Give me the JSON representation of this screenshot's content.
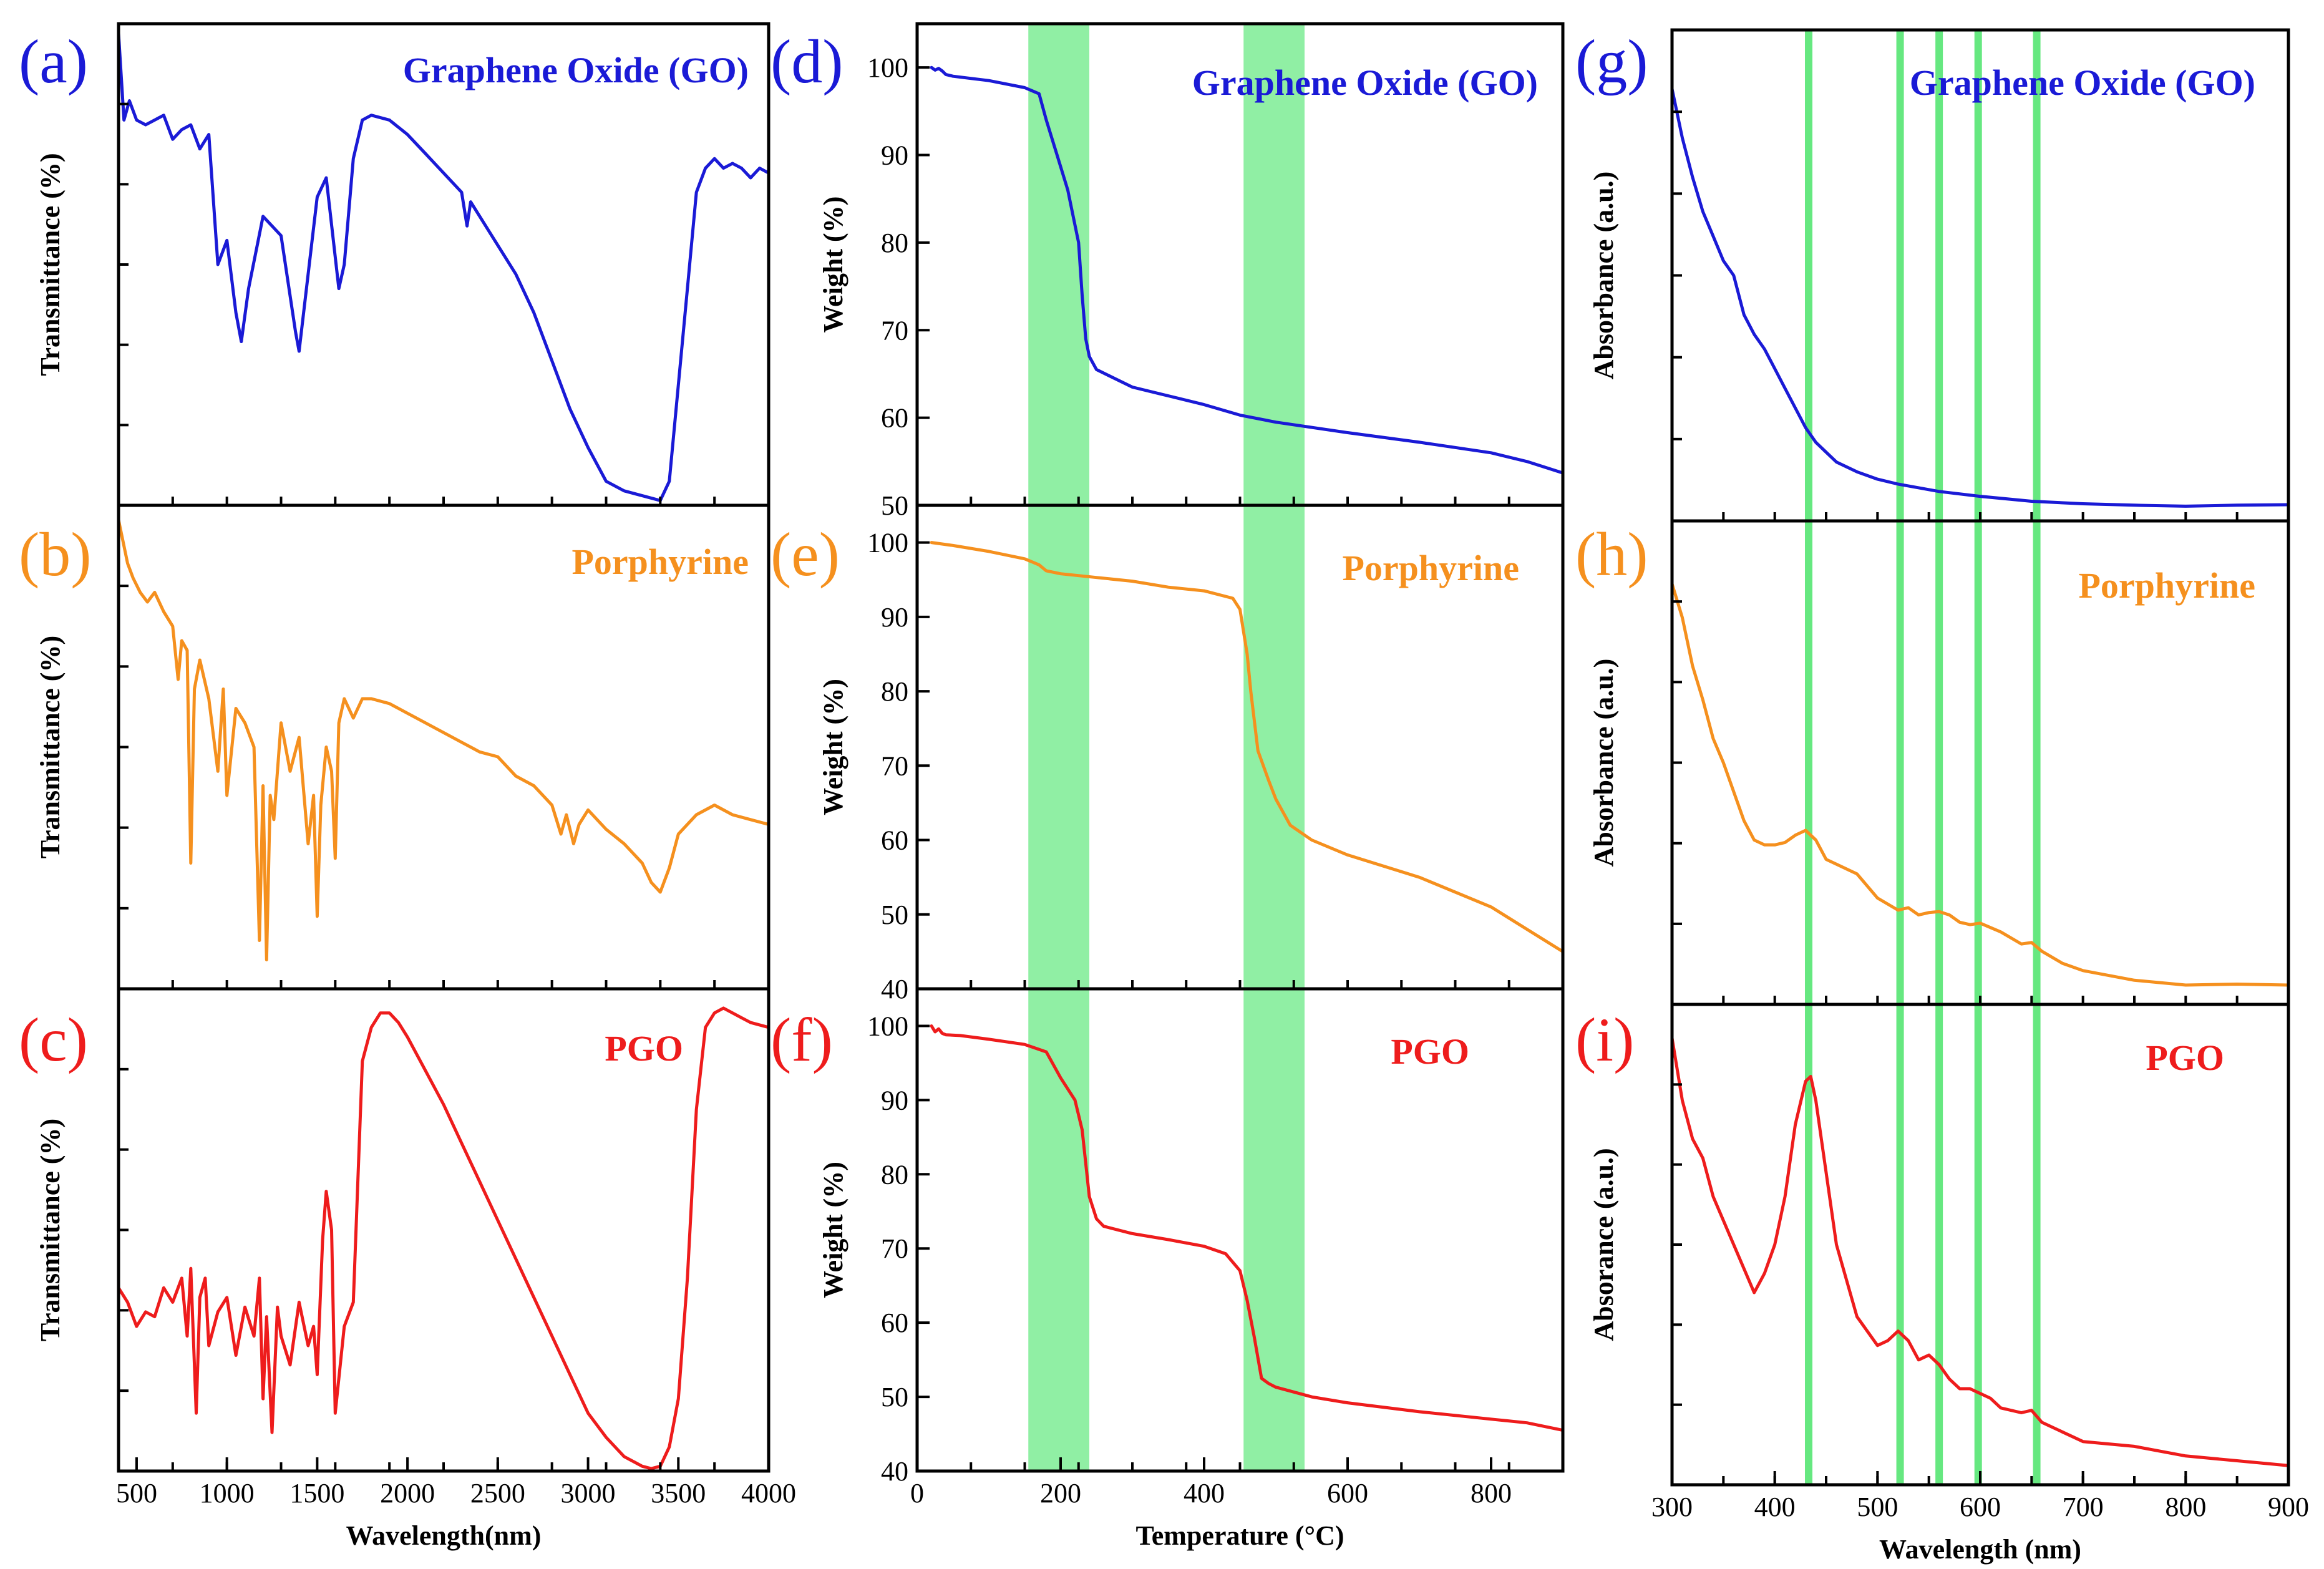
{
  "colors": {
    "go": "#1a1ad6",
    "porphyrine": "#f5901e",
    "pgo": "#ee1c1c",
    "band": "#22e04a"
  },
  "chart_data": [
    {
      "type": "line",
      "panel": "a",
      "letter": "(a)",
      "title": "Graphene Oxide (GO)",
      "series_color": "go",
      "xlabel": "",
      "ylabel": "Transmittance (%)",
      "xlim": [
        400,
        4000
      ],
      "ylim": [
        0,
        100
      ],
      "x_ticks": [],
      "y_ticks": [],
      "x": [
        400,
        430,
        460,
        500,
        550,
        600,
        650,
        700,
        750,
        800,
        850,
        900,
        950,
        1000,
        1050,
        1080,
        1120,
        1200,
        1300,
        1380,
        1400,
        1450,
        1500,
        1550,
        1620,
        1650,
        1700,
        1750,
        1800,
        1900,
        2000,
        2100,
        2200,
        2300,
        2330,
        2350,
        2400,
        2500,
        2600,
        2700,
        2800,
        2900,
        3000,
        3100,
        3200,
        3300,
        3400,
        3450,
        3500,
        3550,
        3600,
        3650,
        3700,
        3750,
        3800,
        3850,
        3900,
        3950,
        4000
      ],
      "y": [
        98,
        80,
        84,
        80,
        79,
        80,
        81,
        76,
        78,
        79,
        74,
        77,
        50,
        55,
        40,
        34,
        45,
        60,
        56,
        36,
        32,
        48,
        64,
        68,
        45,
        50,
        72,
        80,
        81,
        80,
        77,
        73,
        69,
        65,
        58,
        63,
        60,
        54,
        48,
        40,
        30,
        20,
        12,
        5,
        3,
        2,
        1,
        5,
        25,
        45,
        65,
        70,
        72,
        70,
        71,
        70,
        68,
        70,
        69
      ]
    },
    {
      "type": "line",
      "panel": "b",
      "letter": "(b)",
      "title": "Porphyrine",
      "series_color": "porphyrine",
      "xlabel": "",
      "ylabel": "Transmittance (%)",
      "xlim": [
        400,
        4000
      ],
      "ylim": [
        0,
        100
      ],
      "x_ticks": [],
      "y_ticks": [],
      "x": [
        400,
        450,
        480,
        520,
        560,
        600,
        650,
        700,
        730,
        750,
        780,
        800,
        820,
        850,
        900,
        950,
        980,
        1000,
        1050,
        1100,
        1150,
        1180,
        1200,
        1220,
        1240,
        1260,
        1300,
        1350,
        1400,
        1450,
        1480,
        1500,
        1520,
        1550,
        1580,
        1600,
        1620,
        1650,
        1700,
        1750,
        1800,
        1900,
        2000,
        2100,
        2200,
        2300,
        2400,
        2500,
        2600,
        2700,
        2800,
        2850,
        2880,
        2920,
        2950,
        3000,
        3100,
        3200,
        3300,
        3350,
        3400,
        3450,
        3500,
        3600,
        3700,
        3800,
        3900,
        4000
      ],
      "y": [
        97,
        88,
        85,
        82,
        80,
        82,
        78,
        75,
        64,
        72,
        70,
        26,
        62,
        68,
        60,
        45,
        62,
        40,
        58,
        55,
        50,
        10,
        42,
        6,
        40,
        35,
        55,
        45,
        52,
        30,
        40,
        15,
        38,
        50,
        45,
        27,
        55,
        60,
        56,
        60,
        60,
        59,
        57,
        55,
        53,
        51,
        49,
        48,
        44,
        42,
        38,
        32,
        36,
        30,
        34,
        37,
        33,
        30,
        26,
        22,
        20,
        25,
        32,
        36,
        38,
        36,
        35,
        34
      ]
    },
    {
      "type": "line",
      "panel": "c",
      "letter": "(c)",
      "title": "PGO",
      "series_color": "pgo",
      "xlabel": "Wavelength(nm)",
      "ylabel": "Transmittance (%)",
      "xlim": [
        400,
        4000
      ],
      "ylim": [
        0,
        100
      ],
      "x_ticks": [
        500,
        1000,
        1500,
        2000,
        2500,
        3000,
        3500,
        4000
      ],
      "y_ticks": [],
      "x": [
        400,
        450,
        500,
        550,
        600,
        650,
        700,
        750,
        780,
        800,
        830,
        850,
        880,
        900,
        950,
        1000,
        1050,
        1100,
        1150,
        1180,
        1200,
        1220,
        1250,
        1280,
        1300,
        1350,
        1400,
        1450,
        1480,
        1500,
        1530,
        1550,
        1580,
        1600,
        1650,
        1700,
        1750,
        1800,
        1850,
        1900,
        1950,
        2000,
        2100,
        2200,
        2300,
        2400,
        2500,
        2600,
        2700,
        2800,
        2900,
        3000,
        3100,
        3200,
        3300,
        3350,
        3400,
        3450,
        3500,
        3550,
        3600,
        3650,
        3700,
        3750,
        3800,
        3850,
        3900,
        4000
      ],
      "y": [
        38,
        35,
        30,
        33,
        32,
        38,
        35,
        40,
        28,
        42,
        12,
        36,
        40,
        26,
        33,
        36,
        24,
        34,
        28,
        40,
        15,
        32,
        8,
        34,
        28,
        22,
        35,
        26,
        30,
        20,
        48,
        58,
        50,
        12,
        30,
        35,
        85,
        92,
        95,
        95,
        93,
        90,
        83,
        76,
        68,
        60,
        52,
        44,
        36,
        28,
        20,
        12,
        7,
        3,
        1,
        0.5,
        1,
        5,
        15,
        40,
        75,
        92,
        95,
        96,
        95,
        94,
        93,
        92
      ]
    },
    {
      "type": "line",
      "panel": "d",
      "letter": "(d)",
      "title": "Graphene Oxide (GO)",
      "series_color": "go",
      "xlabel": "",
      "ylabel": "Weight (%)",
      "xlim": [
        0,
        900
      ],
      "ylim": [
        50,
        105
      ],
      "x_ticks": [],
      "y_ticks": [
        50,
        60,
        70,
        80,
        90,
        100
      ],
      "bands": [
        [
          155,
          240
        ],
        [
          455,
          540
        ]
      ],
      "x": [
        20,
        25,
        30,
        35,
        40,
        50,
        100,
        150,
        170,
        180,
        195,
        210,
        225,
        230,
        235,
        240,
        250,
        275,
        300,
        350,
        400,
        450,
        500,
        600,
        700,
        800,
        850,
        900
      ],
      "y": [
        100,
        99.7,
        99.9,
        99.6,
        99.2,
        99,
        98.5,
        97.7,
        97,
        94,
        90,
        86,
        80,
        74,
        69,
        67,
        65.5,
        64.5,
        63.5,
        62.5,
        61.5,
        60.3,
        59.5,
        58.3,
        57.2,
        56,
        55,
        53.7
      ]
    },
    {
      "type": "line",
      "panel": "e",
      "letter": "(e)",
      "title": "Porphyrine",
      "series_color": "porphyrine",
      "xlabel": "",
      "ylabel": "Weight (%)",
      "xlim": [
        0,
        900
      ],
      "ylim": [
        40,
        105
      ],
      "x_ticks": [],
      "y_ticks": [
        40,
        50,
        60,
        70,
        80,
        90,
        100
      ],
      "bands": [
        [
          155,
          240
        ],
        [
          455,
          540
        ]
      ],
      "x": [
        20,
        50,
        100,
        150,
        170,
        180,
        200,
        250,
        300,
        350,
        400,
        440,
        450,
        460,
        465,
        475,
        490,
        500,
        520,
        550,
        600,
        700,
        800,
        850,
        900
      ],
      "y": [
        100,
        99.6,
        98.8,
        97.8,
        97,
        96.2,
        95.8,
        95.3,
        94.8,
        94,
        93.5,
        92.5,
        91,
        85,
        80,
        72,
        68,
        65.5,
        62,
        60,
        58,
        55,
        51,
        48,
        45
      ]
    },
    {
      "type": "line",
      "panel": "f",
      "letter": "(f)",
      "title": "PGO",
      "series_color": "pgo",
      "xlabel": "Temperature (°C)",
      "ylabel": "Weight (%)",
      "xlim": [
        0,
        900
      ],
      "ylim": [
        40,
        105
      ],
      "x_ticks": [
        0,
        200,
        400,
        600,
        800
      ],
      "y_ticks": [
        40,
        50,
        60,
        70,
        80,
        90,
        100
      ],
      "bands": [
        [
          155,
          240
        ],
        [
          455,
          540
        ]
      ],
      "x": [
        20,
        25,
        30,
        35,
        40,
        60,
        100,
        150,
        180,
        200,
        220,
        230,
        240,
        250,
        260,
        300,
        350,
        400,
        430,
        450,
        460,
        470,
        480,
        490,
        500,
        550,
        600,
        700,
        800,
        850,
        900
      ],
      "y": [
        100,
        99.2,
        99.6,
        99,
        98.8,
        98.7,
        98.2,
        97.5,
        96.5,
        93,
        90,
        86,
        77,
        74,
        73,
        72,
        71.2,
        70.3,
        69.3,
        67,
        63,
        58,
        52.5,
        51.8,
        51.3,
        50,
        49.2,
        48,
        47,
        46.5,
        45.5
      ]
    },
    {
      "type": "line",
      "panel": "g",
      "letter": "(g)",
      "title": "Graphene Oxide (GO)",
      "series_color": "go",
      "xlabel": "",
      "ylabel": "Absorbance (a.u.)",
      "xlim": [
        300,
        900
      ],
      "ylim": [
        0,
        100
      ],
      "x_ticks": [],
      "y_ticks": [],
      "vlines": [
        433,
        522,
        560,
        598,
        655
      ],
      "x": [
        300,
        310,
        320,
        330,
        340,
        350,
        360,
        370,
        380,
        390,
        400,
        410,
        420,
        430,
        440,
        460,
        480,
        500,
        520,
        560,
        600,
        650,
        700,
        750,
        800,
        850,
        900
      ],
      "y": [
        88,
        78,
        70,
        63,
        58,
        53,
        50,
        42,
        38,
        35,
        31,
        27,
        23,
        19,
        16,
        12,
        10,
        8.5,
        7.5,
        6,
        5,
        4,
        3.5,
        3.2,
        3,
        3.2,
        3.3
      ]
    },
    {
      "type": "line",
      "panel": "h",
      "letter": "(h)",
      "title": "Porphyrine",
      "series_color": "porphyrine",
      "xlabel": "",
      "ylabel": "Absorbance (a.u.)",
      "xlim": [
        300,
        900
      ],
      "ylim": [
        0,
        100
      ],
      "x_ticks": [],
      "y_ticks": [],
      "vlines": [
        433,
        522,
        560,
        598,
        655
      ],
      "x": [
        300,
        310,
        320,
        330,
        340,
        350,
        360,
        370,
        380,
        390,
        400,
        410,
        420,
        430,
        440,
        450,
        460,
        480,
        500,
        520,
        530,
        540,
        550,
        560,
        570,
        580,
        590,
        600,
        620,
        640,
        650,
        660,
        680,
        700,
        750,
        800,
        850,
        900
      ],
      "y": [
        87,
        80,
        70,
        63,
        55,
        50,
        44,
        38,
        34,
        33,
        33,
        33.5,
        35,
        36,
        34,
        30,
        29,
        27,
        22,
        19.5,
        20,
        18.5,
        19,
        19.2,
        18.5,
        17,
        16.5,
        16.8,
        15,
        12.5,
        12.8,
        11,
        8.5,
        7,
        5,
        4,
        4.2,
        4
      ]
    },
    {
      "type": "line",
      "panel": "i",
      "letter": "(i)",
      "title": "PGO",
      "series_color": "pgo",
      "xlabel": "Wavelength (nm)",
      "ylabel": "Absorance (a.u.)",
      "xlim": [
        300,
        900
      ],
      "ylim": [
        0,
        100
      ],
      "x_ticks": [
        300,
        400,
        500,
        600,
        700,
        800,
        900
      ],
      "y_ticks": [],
      "vlines": [
        433,
        522,
        560,
        598,
        655
      ],
      "x": [
        300,
        310,
        320,
        330,
        340,
        360,
        380,
        390,
        400,
        410,
        420,
        430,
        435,
        440,
        450,
        460,
        480,
        500,
        510,
        520,
        525,
        530,
        540,
        550,
        560,
        570,
        580,
        590,
        600,
        610,
        620,
        640,
        650,
        660,
        680,
        700,
        750,
        800,
        850,
        900
      ],
      "y": [
        93,
        80,
        72,
        68,
        60,
        50,
        40,
        44,
        50,
        60,
        75,
        84,
        85,
        80,
        65,
        50,
        35,
        29,
        30,
        32,
        31,
        30,
        26,
        27,
        25,
        22,
        20,
        20,
        19,
        18,
        16,
        15,
        15.5,
        13,
        11,
        9,
        8,
        6,
        5,
        4
      ]
    }
  ]
}
